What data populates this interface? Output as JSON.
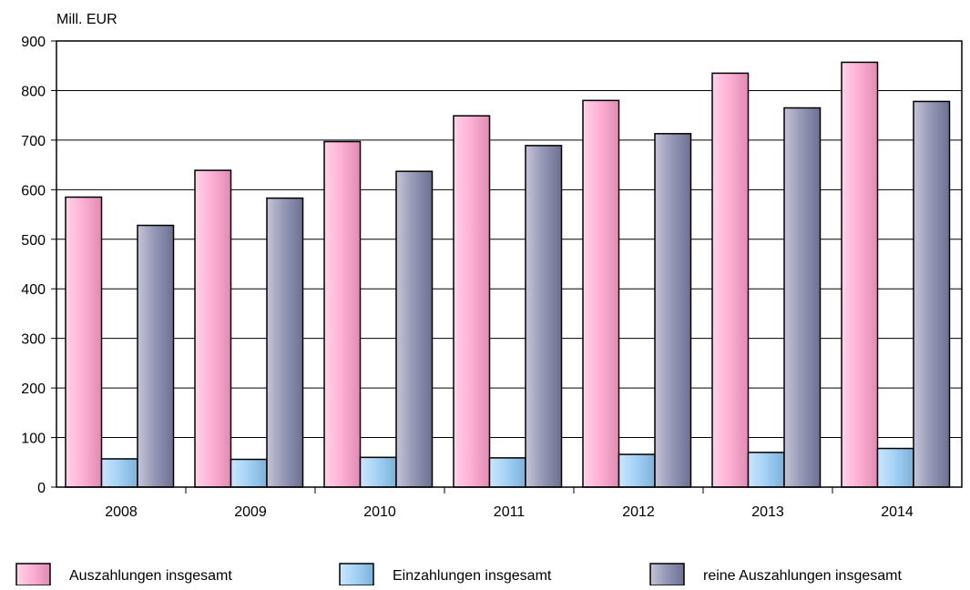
{
  "chart_data": {
    "type": "bar",
    "title": "",
    "ylabel": "Mill. EUR",
    "xlabel": "",
    "ylim": [
      0,
      900
    ],
    "yticks": [
      0,
      100,
      200,
      300,
      400,
      500,
      600,
      700,
      800,
      900
    ],
    "grid": true,
    "legend_position": "bottom",
    "categories": [
      "2008",
      "2009",
      "2010",
      "2011",
      "2012",
      "2013",
      "2014"
    ],
    "series": [
      {
        "name": "Auszahlungen insgesamt",
        "color": "#ff9ecb",
        "values": [
          585,
          639,
          697,
          749,
          780,
          835,
          857
        ]
      },
      {
        "name": "Einzahlungen insgesamt",
        "color": "#8ec8f5",
        "values": [
          57,
          56,
          60,
          59,
          66,
          70,
          78
        ]
      },
      {
        "name": "reine Auszahlungen insgesamt",
        "color": "#7d7fa6",
        "values": [
          528,
          583,
          637,
          689,
          713,
          765,
          778
        ]
      }
    ]
  }
}
